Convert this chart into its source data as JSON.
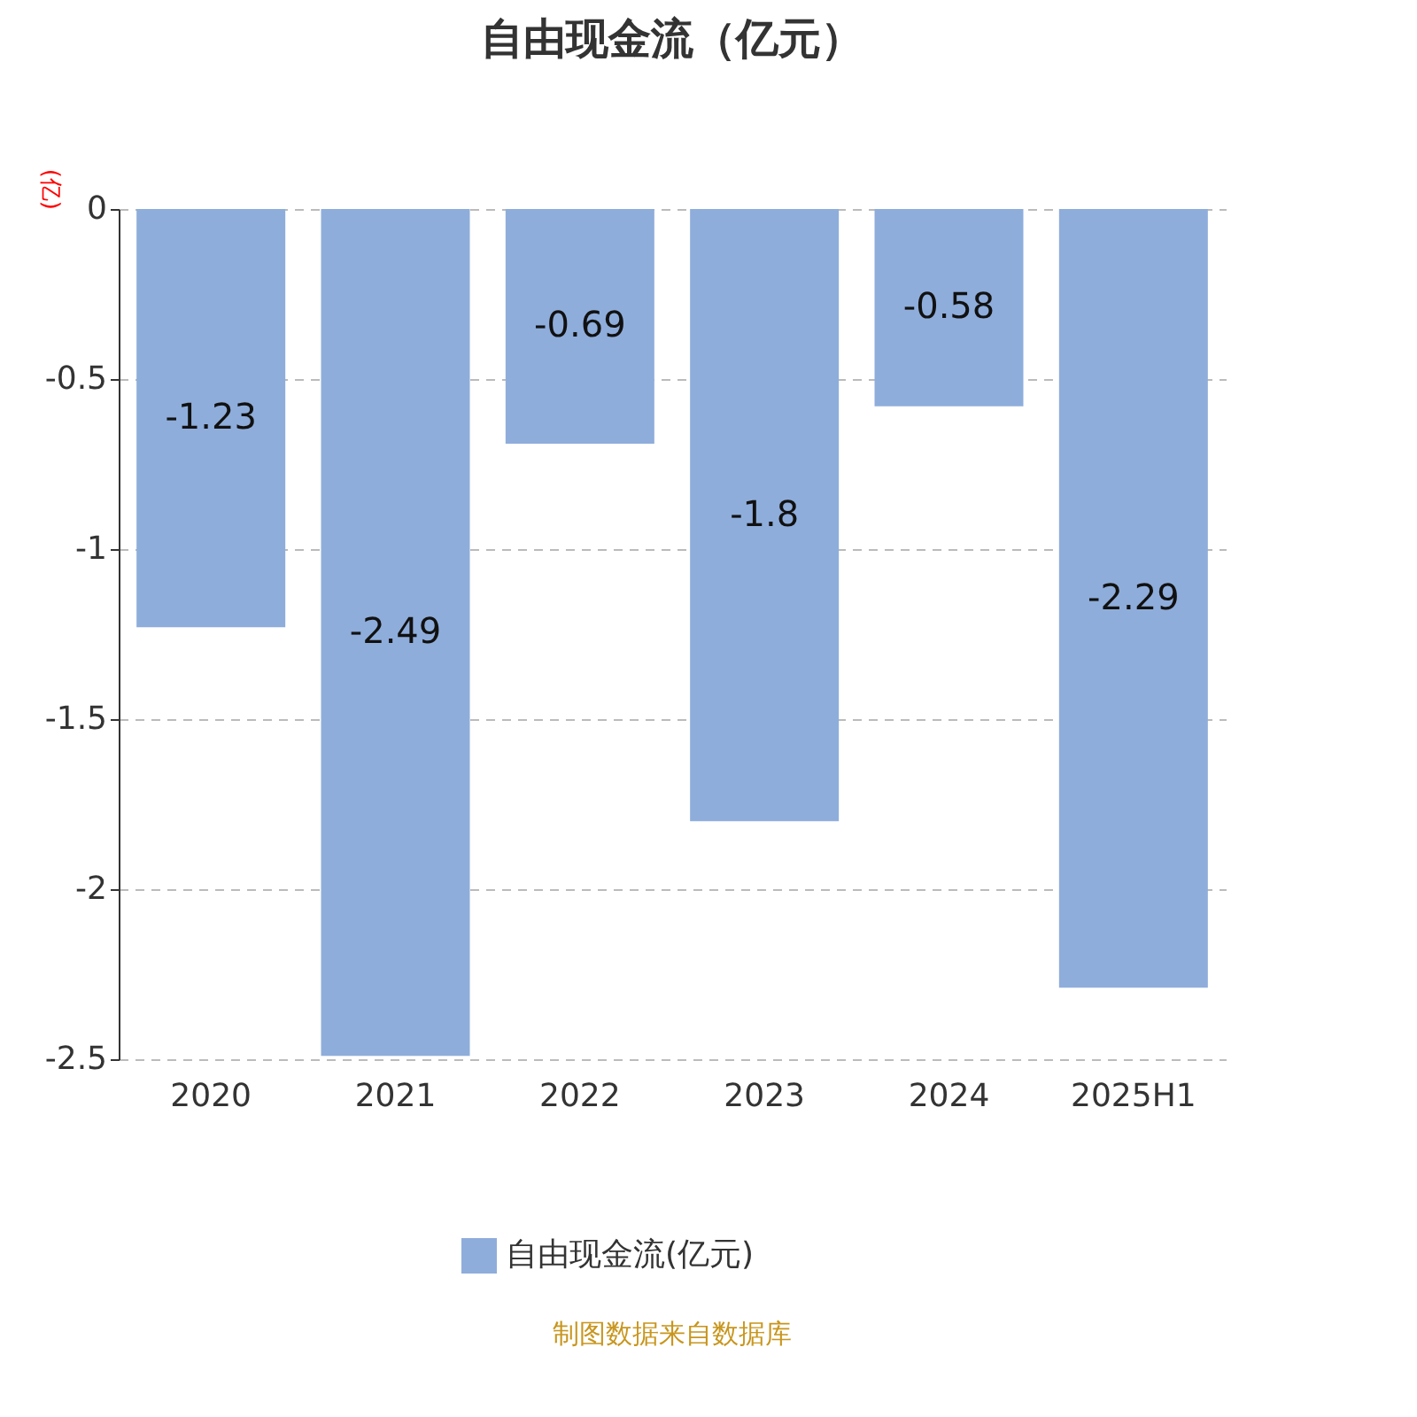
{
  "chart_data": {
    "type": "bar",
    "title": "自由现金流（亿元）",
    "ylabel": "(亿)",
    "categories": [
      "2020",
      "2021",
      "2022",
      "2023",
      "2024",
      "2025H1"
    ],
    "series": [
      {
        "name": "自由现金流(亿元)",
        "color": "#8eaddb",
        "values": [
          -1.23,
          -2.49,
          -0.69,
          -1.8,
          -0.58,
          -2.29
        ]
      }
    ],
    "ylim": [
      -2.5,
      0
    ],
    "yticks": [
      -2.5,
      -2,
      -1.5,
      -1,
      -0.5,
      0
    ],
    "grid": "y",
    "legend": "bottom",
    "data_labels": true,
    "annotations": [
      "制图数据来自数据库"
    ]
  }
}
